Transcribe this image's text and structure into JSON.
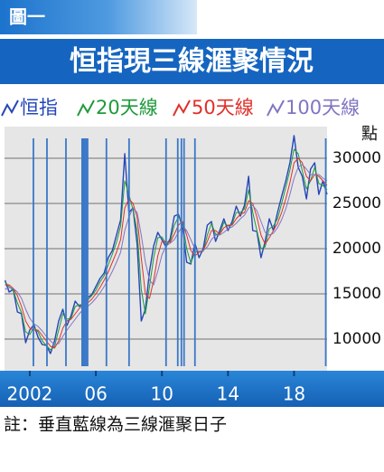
{
  "figure_label": "圖一",
  "chart_data": {
    "type": "line",
    "title": "恒指現三線滙聚情況",
    "y_label": "點",
    "note": "註：垂直藍線為三線滙聚日子",
    "x": [
      2000.5,
      2000.75,
      2001,
      2001.25,
      2001.5,
      2001.75,
      2002,
      2002.25,
      2002.5,
      2002.75,
      2003,
      2003.25,
      2003.5,
      2003.75,
      2004,
      2004.25,
      2004.5,
      2004.75,
      2005,
      2005.25,
      2005.5,
      2005.75,
      2006,
      2006.25,
      2006.5,
      2006.75,
      2007,
      2007.25,
      2007.5,
      2007.75,
      2008,
      2008.25,
      2008.5,
      2008.75,
      2009,
      2009.25,
      2009.5,
      2009.75,
      2010,
      2010.25,
      2010.5,
      2010.75,
      2011,
      2011.25,
      2011.5,
      2011.75,
      2012,
      2012.25,
      2012.5,
      2012.75,
      2013,
      2013.25,
      2013.5,
      2013.75,
      2014,
      2014.25,
      2014.5,
      2014.75,
      2015,
      2015.25,
      2015.5,
      2015.75,
      2016,
      2016.25,
      2016.5,
      2016.75,
      2017,
      2017.25,
      2017.5,
      2017.75,
      2018,
      2018.25,
      2018.5,
      2018.75,
      2019,
      2019.25,
      2019.5,
      2019.75,
      2020
    ],
    "series": [
      {
        "name": "恒指",
        "color": "#2446b8",
        "values": [
          16500,
          15200,
          15500,
          13000,
          12800,
          9600,
          11000,
          11600,
          10200,
          9400,
          9300,
          8400,
          9800,
          12000,
          13300,
          11500,
          12600,
          14200,
          13600,
          13900,
          14600,
          14900,
          15800,
          16700,
          17300,
          19000,
          19800,
          21500,
          23200,
          30500,
          24000,
          24500,
          20500,
          12000,
          13300,
          17500,
          20300,
          21800,
          21000,
          20200,
          21100,
          23600,
          23800,
          22400,
          18500,
          18300,
          20600,
          19000,
          20000,
          22600,
          23000,
          20800,
          22000,
          23300,
          22000,
          23000,
          24700,
          23600,
          24800,
          28000,
          22000,
          21900,
          19000,
          20800,
          23300,
          22000,
          24000,
          25800,
          27500,
          29500,
          32500,
          29000,
          28000,
          25500,
          28800,
          29500,
          26000,
          27500,
          26000
        ]
      },
      {
        "name": "20天線",
        "color": "#1f9a3a",
        "values": [
          16300,
          15800,
          15400,
          14000,
          12900,
          10800,
          10500,
          11300,
          10800,
          9800,
          9300,
          8800,
          9200,
          11000,
          12800,
          12200,
          12300,
          13600,
          13800,
          13800,
          14300,
          14800,
          15400,
          16300,
          17000,
          18200,
          19400,
          20700,
          22500,
          27500,
          26000,
          24300,
          22000,
          15500,
          12800,
          15800,
          19000,
          21200,
          21300,
          20500,
          20800,
          22600,
          23500,
          22900,
          20000,
          18400,
          19600,
          19700,
          19700,
          21500,
          22800,
          21600,
          21600,
          22900,
          22500,
          22700,
          24000,
          24000,
          24400,
          26500,
          24000,
          22000,
          20000,
          20200,
          22200,
          22500,
          23300,
          25000,
          26800,
          28700,
          31000,
          30500,
          28600,
          26600,
          27500,
          29000,
          27200,
          27000,
          26500
        ]
      },
      {
        "name": "50天線",
        "color": "#e0302a",
        "values": [
          16000,
          16000,
          15600,
          14800,
          13600,
          12000,
          11200,
          11000,
          11000,
          10400,
          9800,
          9200,
          9000,
          9800,
          11200,
          12000,
          12200,
          12800,
          13400,
          13700,
          14000,
          14400,
          15000,
          15700,
          16500,
          17400,
          18500,
          19600,
          21000,
          24500,
          25500,
          25000,
          23500,
          19000,
          15000,
          14500,
          16500,
          19200,
          20800,
          20800,
          20700,
          21600,
          22600,
          23000,
          21500,
          19800,
          19200,
          19600,
          19800,
          20800,
          22000,
          22000,
          21600,
          22300,
          22600,
          22600,
          23300,
          23800,
          24000,
          25300,
          25000,
          23500,
          21500,
          20500,
          21200,
          22000,
          22800,
          24000,
          25500,
          27300,
          29500,
          30000,
          29500,
          28000,
          27500,
          28200,
          28000,
          27500,
          27000
        ]
      },
      {
        "name": "100天線",
        "color": "#7f76c2",
        "values": [
          15500,
          15700,
          15600,
          15200,
          14500,
          13300,
          12300,
          11700,
          11400,
          10900,
          10300,
          9800,
          9400,
          9500,
          10300,
          11000,
          11600,
          12200,
          12800,
          13300,
          13600,
          14000,
          14500,
          15100,
          15800,
          16600,
          17500,
          18500,
          19600,
          22000,
          23500,
          24500,
          24000,
          21500,
          18500,
          16500,
          16000,
          17500,
          19300,
          20300,
          20600,
          21000,
          21800,
          22500,
          22000,
          21000,
          20000,
          19700,
          19800,
          20200,
          21000,
          21500,
          21500,
          21800,
          22200,
          22400,
          22800,
          23300,
          23700,
          24500,
          24800,
          24200,
          23000,
          21800,
          21500,
          21700,
          22300,
          23200,
          24400,
          26000,
          27800,
          29000,
          29300,
          28800,
          28200,
          28200,
          28200,
          27800,
          27500
        ]
      }
    ],
    "convergence_lines": [
      2002.22,
      2003.04,
      2004.19,
      2005.17,
      2005.25,
      2005.33,
      2005.42,
      2005.5,
      2006.64,
      2008.01,
      2010.25,
      2010.96,
      2011.18,
      2011.34,
      2012.0,
      2019.92
    ],
    "convergence_color": "#3a78c8",
    "xlim": [
      2000.47,
      2020
    ],
    "xticks": [
      2002,
      {
        "value": 2006,
        "label": "06"
      },
      {
        "value": 2010,
        "label": "10"
      },
      {
        "value": 2014,
        "label": "14"
      },
      {
        "value": 2018,
        "label": "18"
      }
    ],
    "ylim": [
      6500,
      33500
    ],
    "yticks": [
      10000,
      15000,
      20000,
      25000,
      30000
    ],
    "grid": true
  }
}
